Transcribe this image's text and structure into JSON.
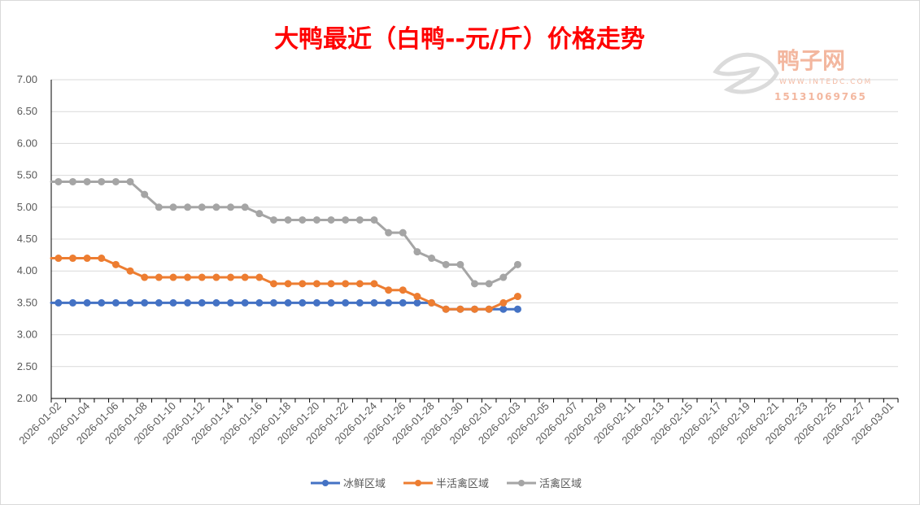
{
  "chart_data": {
    "type": "line",
    "title": "大鸭最近（白鸭--元/斤）价格走势",
    "ylim": [
      2.0,
      7.0
    ],
    "y_ticks": [
      "7.00",
      "6.50",
      "6.00",
      "5.50",
      "5.00",
      "4.50",
      "4.00",
      "3.50",
      "3.00",
      "2.50",
      "2.00"
    ],
    "x_tick_labels": [
      "2026-01-02",
      "2026-01-04",
      "2026-01-06",
      "2026-01-08",
      "2026-01-10",
      "2026-01-12",
      "2026-01-14",
      "2026-01-16",
      "2026-01-18",
      "2026-01-20",
      "2026-01-22",
      "2026-01-24",
      "2026-01-26",
      "2026-01-28",
      "2026-01-30",
      "2026-02-01",
      "2026-02-03",
      "2026-02-05",
      "2026-02-07",
      "2026-02-09",
      "2026-02-11",
      "2026-02-13",
      "2026-02-15",
      "2026-02-17",
      "2026-02-19",
      "2026-02-21",
      "2026-02-23",
      "2026-02-25",
      "2026-02-27",
      "2026-03-01"
    ],
    "dates": [
      "2026-01-02",
      "2026-01-03",
      "2026-01-04",
      "2026-01-05",
      "2026-01-06",
      "2026-01-07",
      "2026-01-08",
      "2026-01-09",
      "2026-01-10",
      "2026-01-11",
      "2026-01-12",
      "2026-01-13",
      "2026-01-14",
      "2026-01-15",
      "2026-01-16",
      "2026-01-17",
      "2026-01-18",
      "2026-01-19",
      "2026-01-20",
      "2026-01-21",
      "2026-01-22",
      "2026-01-23",
      "2026-01-24",
      "2026-01-25",
      "2026-01-26",
      "2026-01-27",
      "2026-01-28",
      "2026-01-29",
      "2026-01-30",
      "2026-01-31",
      "2026-02-01",
      "2026-02-02",
      "2026-02-03"
    ],
    "series": [
      {
        "name": "冰鲜区域",
        "color": "#4472c4",
        "values": [
          3.5,
          3.5,
          3.5,
          3.5,
          3.5,
          3.5,
          3.5,
          3.5,
          3.5,
          3.5,
          3.5,
          3.5,
          3.5,
          3.5,
          3.5,
          3.5,
          3.5,
          3.5,
          3.5,
          3.5,
          3.5,
          3.5,
          3.5,
          3.5,
          3.5,
          3.5,
          3.5,
          3.4,
          3.4,
          3.4,
          3.4,
          3.4,
          3.4
        ]
      },
      {
        "name": "半活禽区域",
        "color": "#ed7d31",
        "values": [
          4.2,
          4.2,
          4.2,
          4.2,
          4.1,
          4.0,
          3.9,
          3.9,
          3.9,
          3.9,
          3.9,
          3.9,
          3.9,
          3.9,
          3.9,
          3.8,
          3.8,
          3.8,
          3.8,
          3.8,
          3.8,
          3.8,
          3.8,
          3.7,
          3.7,
          3.6,
          3.5,
          3.4,
          3.4,
          3.4,
          3.4,
          3.5,
          3.6
        ]
      },
      {
        "name": "活禽区域",
        "color": "#a5a5a5",
        "values": [
          5.4,
          5.4,
          5.4,
          5.4,
          5.4,
          5.4,
          5.2,
          5.0,
          5.0,
          5.0,
          5.0,
          5.0,
          5.0,
          5.0,
          4.9,
          4.8,
          4.8,
          4.8,
          4.8,
          4.8,
          4.8,
          4.8,
          4.8,
          4.6,
          4.6,
          4.3,
          4.2,
          4.1,
          4.1,
          3.8,
          3.8,
          3.9,
          4.1
        ]
      }
    ],
    "grid": true,
    "legend_position": "bottom"
  },
  "watermark": {
    "name": "鸭子网",
    "url": "WWW.INTEDC.COM",
    "phone": "15131069765",
    "color": "#f0a080"
  }
}
